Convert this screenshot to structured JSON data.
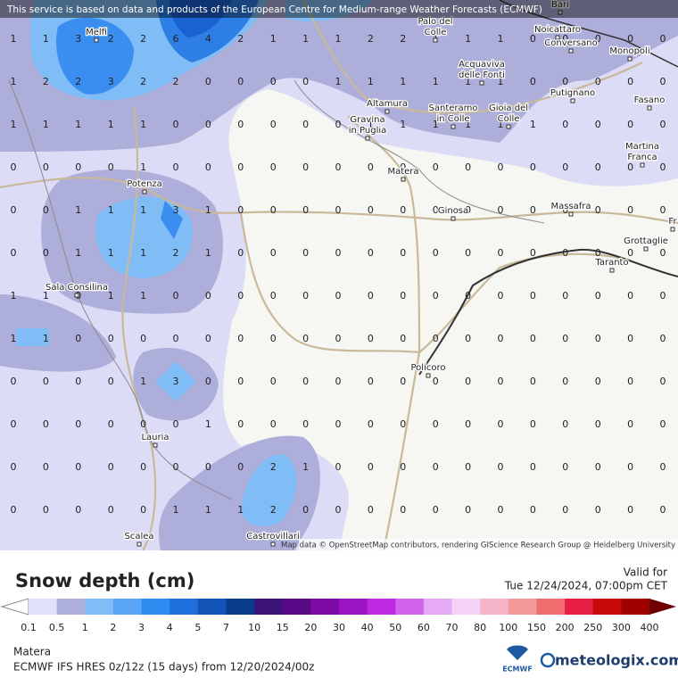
{
  "header": {
    "notice": "This service is based on data and products of the European Centre for Medium-range Weather Forecasts (ECMWF)"
  },
  "map": {
    "grid": [
      [
        1,
        1,
        3,
        2,
        2,
        6,
        4,
        2,
        1,
        1,
        1,
        2,
        2,
        1,
        1,
        1,
        0,
        0,
        0,
        0,
        0
      ],
      [
        1,
        2,
        2,
        3,
        2,
        2,
        0,
        0,
        0,
        0,
        1,
        1,
        1,
        1,
        1,
        1,
        0,
        0,
        0,
        0,
        0
      ],
      [
        1,
        1,
        1,
        1,
        1,
        0,
        0,
        0,
        0,
        0,
        0,
        1,
        1,
        1,
        1,
        1,
        1,
        0,
        0,
        0,
        0
      ],
      [
        0,
        0,
        0,
        0,
        1,
        0,
        0,
        0,
        0,
        0,
        0,
        0,
        0,
        0,
        0,
        0,
        0,
        0,
        0,
        0,
        0
      ],
      [
        0,
        0,
        1,
        1,
        1,
        3,
        1,
        0,
        0,
        0,
        0,
        0,
        0,
        0,
        0,
        0,
        0,
        0,
        0,
        0,
        0
      ],
      [
        0,
        0,
        1,
        1,
        1,
        2,
        1,
        0,
        0,
        0,
        0,
        0,
        0,
        0,
        0,
        0,
        0,
        0,
        0,
        0,
        0
      ],
      [
        1,
        1,
        0,
        1,
        1,
        0,
        0,
        0,
        0,
        0,
        0,
        0,
        0,
        0,
        0,
        0,
        0,
        0,
        0,
        0,
        0
      ],
      [
        1,
        1,
        0,
        0,
        0,
        0,
        0,
        0,
        0,
        0,
        0,
        0,
        0,
        0,
        0,
        0,
        0,
        0,
        0,
        0,
        0
      ],
      [
        0,
        0,
        0,
        0,
        1,
        3,
        0,
        0,
        0,
        0,
        0,
        0,
        0,
        0,
        0,
        0,
        0,
        0,
        0,
        0,
        0
      ],
      [
        0,
        0,
        0,
        0,
        0,
        0,
        1,
        0,
        0,
        0,
        0,
        0,
        0,
        0,
        0,
        0,
        0,
        0,
        0,
        0,
        0
      ],
      [
        0,
        0,
        0,
        0,
        0,
        0,
        0,
        0,
        2,
        1,
        0,
        0,
        0,
        0,
        0,
        0,
        0,
        0,
        0,
        0,
        0
      ],
      [
        0,
        0,
        0,
        0,
        0,
        1,
        1,
        1,
        2,
        0,
        0,
        0,
        0,
        0,
        0,
        0,
        0,
        0,
        0,
        0,
        0
      ]
    ],
    "places": [
      {
        "lines": [
          "Bari"
        ]
      },
      {
        "lines": [
          "Melfi"
        ]
      },
      {
        "lines": [
          "Palo del",
          "Colle"
        ]
      },
      {
        "lines": [
          "Noicattaro"
        ]
      },
      {
        "lines": [
          "Conversano"
        ]
      },
      {
        "lines": [
          "Monopoli"
        ]
      },
      {
        "lines": [
          "Acquaviva",
          "delle Fonti"
        ]
      },
      {
        "lines": [
          "Altamura"
        ]
      },
      {
        "lines": [
          "Putignano"
        ]
      },
      {
        "lines": [
          "Fasano"
        ]
      },
      {
        "lines": [
          "Gravina",
          "in Puglia"
        ]
      },
      {
        "lines": [
          "Santeramo",
          "in Colle"
        ]
      },
      {
        "lines": [
          "Gioia del",
          "Colle"
        ]
      },
      {
        "lines": [
          "Martina",
          "Franca"
        ]
      },
      {
        "lines": [
          "Matera"
        ]
      },
      {
        "lines": [
          "Potenza"
        ]
      },
      {
        "lines": [
          "Ginosa"
        ]
      },
      {
        "lines": [
          "Massafra"
        ]
      },
      {
        "lines": [
          "Grottaglie"
        ]
      },
      {
        "lines": [
          "Taranto"
        ]
      },
      {
        "lines": [
          "Sala Consilina"
        ]
      },
      {
        "lines": [
          "Policoro"
        ]
      },
      {
        "lines": [
          "Lauria"
        ]
      },
      {
        "lines": [
          "Scalea"
        ]
      },
      {
        "lines": [
          "Castrovillari"
        ]
      },
      {
        "lines": [
          "Fr"
        ]
      }
    ],
    "attribution": "Map data © OpenStreetMap contributors, rendering GIScience Research Group @ Heidelberg University"
  },
  "legend": {
    "title": "Snow depth (cm)",
    "valid_label": "Valid for",
    "valid_time": "Tue 12/24/2024, 07:00pm CET",
    "ticks": [
      0.1,
      0.5,
      1,
      2,
      3,
      4,
      5,
      7,
      10,
      15,
      20,
      30,
      40,
      50,
      60,
      70,
      80,
      100,
      150,
      200,
      250,
      300,
      400
    ],
    "colors": [
      "#e0e0fa",
      "#b0b0dc",
      "#80bcf5",
      "#5aa5f5",
      "#2d8cf0",
      "#1e6edc",
      "#1455b9",
      "#0a3c8c",
      "#3c1478",
      "#5a0a87",
      "#7d0aa5",
      "#9b14c3",
      "#be28e1",
      "#d264eb",
      "#e6aaf5",
      "#f5d2f5",
      "#f5b4c8",
      "#f59a9a",
      "#f06e6e",
      "#e61e46",
      "#c80a0a",
      "#a00000"
    ],
    "low_color": "#ffffff",
    "high_color": "#6e0000"
  },
  "footer": {
    "location": "Matera",
    "model": "ECMWF IFS HRES 0z/12z (15 days) from 12/20/2024/00z",
    "ecmwf": "ECMWF",
    "brand": "meteologix.com"
  }
}
